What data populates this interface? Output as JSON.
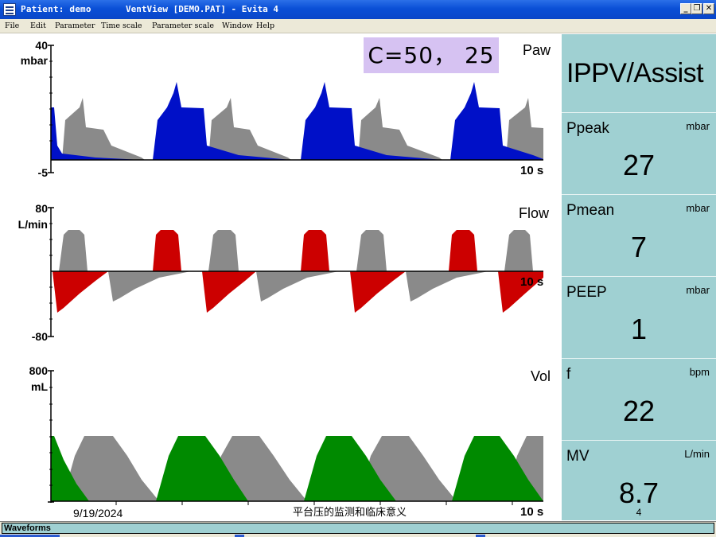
{
  "window": {
    "title_left": "Patient: demo",
    "title_center": "VentView [DEMO.PAT] - Evita 4",
    "buttons": [
      "_",
      "❐",
      "✕"
    ]
  },
  "menu": [
    "File",
    "Edit",
    "Parameter",
    "Time scale",
    "Parameter scale",
    "Window",
    "Help"
  ],
  "annotation": "C=50， 25",
  "channels": {
    "paw": {
      "name": "Paw",
      "max": "40",
      "unit": "mbar",
      "min": "-5",
      "time": "10 s"
    },
    "flow": {
      "name": "Flow",
      "max": "80",
      "unit": "L/min",
      "min": "-80",
      "time": "10 s"
    },
    "vol": {
      "name": "Vol",
      "max": "800",
      "unit": "mL",
      "time": "10 s"
    }
  },
  "footer": {
    "date": "9/19/2024",
    "caption": "平台压的监测和临床意义"
  },
  "panel": {
    "mode": "IPPV/Assist",
    "params": [
      {
        "name": "Ppeak",
        "unit": "mbar",
        "value": "27"
      },
      {
        "name": "Pmean",
        "unit": "mbar",
        "value": "7"
      },
      {
        "name": "PEEP",
        "unit": "mbar",
        "value": "1"
      },
      {
        "name": "f",
        "unit": "bpm",
        "value": "22"
      },
      {
        "name": "MV",
        "unit": "L/min",
        "value": "8.7"
      }
    ],
    "page": "4"
  },
  "status": {
    "label": "Waveforms"
  },
  "colors": {
    "paw_mandatory": "#0010c8",
    "paw_spont": "#8a8a8a",
    "flow_mandatory": "#cc0000",
    "vol_mandatory": "#008a00",
    "panel_bg": "#9fd0d2",
    "annotation_bg": "#d6c2f2"
  }
}
